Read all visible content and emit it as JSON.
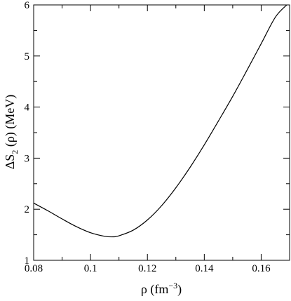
{
  "chart_data": {
    "type": "line",
    "title": "",
    "xlabel": {
      "main": "ρ (fm",
      "sup": "−3",
      "close": ")"
    },
    "ylabel": {
      "main": "ΔS",
      "sub": "2",
      "rest": " (ρ) (MeV)"
    },
    "xlim": [
      0.08,
      0.17
    ],
    "ylim": [
      1,
      6
    ],
    "xticks": [
      0.08,
      0.1,
      0.12,
      0.14,
      0.16
    ],
    "xtick_labels": [
      "0.08",
      "0.1",
      "0.12",
      "0.14",
      "0.16"
    ],
    "yticks": [
      1,
      2,
      3,
      4,
      5,
      6
    ],
    "ytick_labels": [
      "1",
      "2",
      "3",
      "4",
      "5",
      "6"
    ],
    "grid": false,
    "series": [
      {
        "color": "#000000",
        "x": [
          0.08,
          0.085,
          0.09,
          0.095,
          0.1,
          0.105,
          0.108,
          0.11,
          0.115,
          0.12,
          0.125,
          0.13,
          0.135,
          0.14,
          0.145,
          0.15,
          0.155,
          0.16,
          0.165,
          0.169
        ],
        "y": [
          2.12,
          1.97,
          1.81,
          1.66,
          1.54,
          1.47,
          1.46,
          1.48,
          1.59,
          1.79,
          2.07,
          2.42,
          2.82,
          3.26,
          3.73,
          4.21,
          4.72,
          5.24,
          5.76,
          6.0
        ]
      }
    ]
  }
}
